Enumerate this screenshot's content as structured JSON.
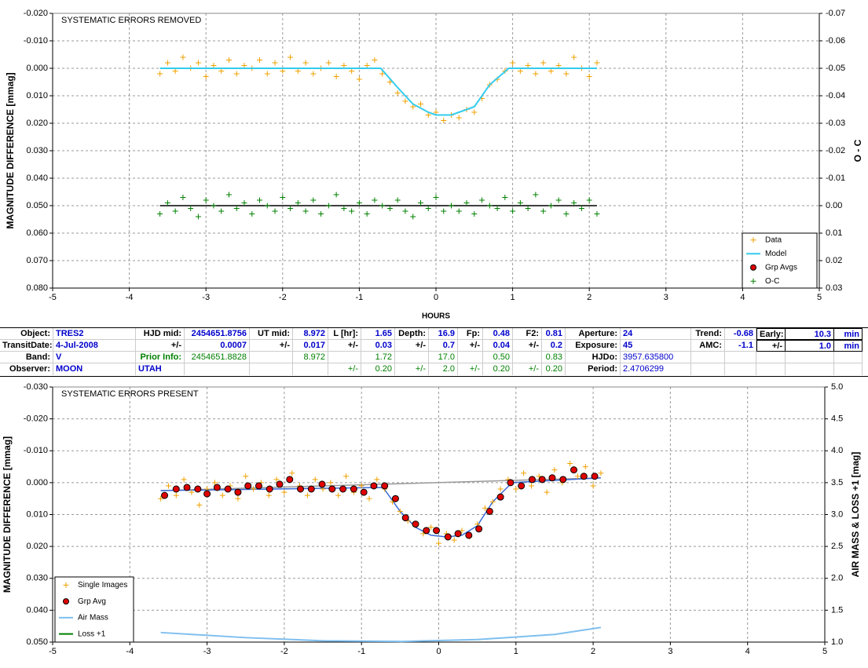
{
  "chart_data": [
    {
      "type": "scatter",
      "title": "SYSTEMATIC ERRORS REMOVED",
      "y_label": "MAGNITUDE DIFFERENCE [mmag]",
      "y2_label": "O - C",
      "x_label": "HOURS",
      "xlim": [
        -5,
        5
      ],
      "xticks": [
        -5,
        -4,
        -3,
        -2,
        -1,
        0,
        1,
        2,
        3,
        4,
        5
      ],
      "ylim": [
        0.08,
        -0.02
      ],
      "yticks": [
        {
          "value": -0.02,
          "label": "-0.020"
        },
        {
          "value": -0.01,
          "label": "-0.010"
        },
        {
          "value": 0,
          "label": "0.000"
        },
        {
          "value": 0.01,
          "label": "0.010"
        },
        {
          "value": 0.02,
          "label": "0.020"
        },
        {
          "value": 0.03,
          "label": "0.030"
        },
        {
          "value": 0.04,
          "label": "0.040"
        },
        {
          "value": 0.05,
          "label": "0.050"
        },
        {
          "value": 0.06,
          "label": "0.060"
        },
        {
          "value": 0.07,
          "label": "0.070"
        },
        {
          "value": 0.08,
          "label": "0.080"
        }
      ],
      "y2lim": [
        0.03,
        -0.07
      ],
      "y2ticks": [
        -0.07,
        -0.06,
        -0.05,
        -0.04,
        -0.03,
        -0.02,
        -0.01,
        {
          "value": 0,
          "label": "0.00"
        },
        0.01,
        0.02,
        0.03
      ],
      "grid": true,
      "legend": "lower-right",
      "x": [
        -3.6,
        -3.5,
        -3.4,
        -3.3,
        -3.2,
        -3.1,
        -3.0,
        -2.9,
        -2.8,
        -2.7,
        -2.6,
        -2.5,
        -2.4,
        -2.3,
        -2.2,
        -2.1,
        -2.0,
        -1.9,
        -1.8,
        -1.7,
        -1.6,
        -1.5,
        -1.4,
        -1.3,
        -1.2,
        -1.1,
        -1.0,
        -0.9,
        -0.8,
        -0.7,
        -0.6,
        -0.5,
        -0.4,
        -0.3,
        -0.2,
        -0.1,
        0.0,
        0.1,
        0.2,
        0.3,
        0.4,
        0.5,
        0.6,
        0.7,
        0.8,
        0.9,
        1.0,
        1.1,
        1.2,
        1.3,
        1.4,
        1.5,
        1.6,
        1.7,
        1.8,
        1.9,
        2.0,
        2.1
      ],
      "series": [
        {
          "name": "Data",
          "color": "#f0a000",
          "marker": "plus",
          "values": [
            0.002,
            -0.002,
            0.001,
            -0.004,
            0.0,
            -0.002,
            0.003,
            -0.001,
            0.001,
            -0.003,
            0.002,
            -0.001,
            0.0,
            -0.003,
            0.002,
            -0.002,
            0.001,
            -0.004,
            0.001,
            -0.002,
            0.002,
            0.0,
            -0.002,
            0.003,
            -0.001,
            0.001,
            0.004,
            -0.001,
            -0.003,
            0.002,
            0.005,
            0.009,
            0.012,
            0.014,
            0.013,
            0.017,
            0.016,
            0.019,
            0.017,
            0.018,
            0.015,
            0.016,
            0.011,
            0.006,
            0.004,
            0.001,
            -0.002,
            0.001,
            -0.001,
            0.002,
            -0.002,
            0.001,
            -0.001,
            0.002,
            -0.004,
            0.0,
            0.003,
            -0.002
          ]
        },
        {
          "name": "Model",
          "color": "#33ccee",
          "marker": "line",
          "x": [
            -3.6,
            -0.72,
            -0.5,
            -0.3,
            -0.1,
            0.0,
            0.2,
            0.5,
            0.7,
            0.95,
            2.1
          ],
          "values": [
            0,
            0,
            0.007,
            0.013,
            0.016,
            0.017,
            0.017,
            0.014,
            0.006,
            0,
            0
          ]
        },
        {
          "name": "Grp Avgs",
          "color": "#e00000",
          "marker": "circle",
          "x": [],
          "values": []
        },
        {
          "name": "O-C",
          "color": "#008000",
          "marker": "plus",
          "axis": "y2",
          "values": [
            0.003,
            -0.001,
            0.002,
            -0.003,
            0.001,
            0.004,
            -0.002,
            0.0,
            0.002,
            -0.004,
            0.001,
            -0.001,
            0.003,
            -0.002,
            0.0,
            0.002,
            -0.003,
            0.001,
            -0.001,
            0.002,
            -0.002,
            0.003,
            0.0,
            -0.004,
            0.001,
            0.002,
            -0.001,
            0.003,
            -0.002,
            0.0,
            0.001,
            -0.002,
            0.002,
            0.004,
            -0.001,
            0.001,
            -0.003,
            0.002,
            0.0,
            0.002,
            -0.001,
            0.003,
            -0.002,
            0.0,
            0.001,
            -0.003,
            0.002,
            -0.001,
            0.001,
            -0.004,
            0.002,
            0.0,
            -0.002,
            0.003,
            -0.001,
            0.001,
            -0.002,
            0.003
          ]
        }
      ],
      "extra_lines": [
        {
          "color": "#000000",
          "axis": "y2",
          "x": [
            -3.6,
            2.1
          ],
          "values": [
            0,
            0
          ]
        }
      ]
    },
    {
      "type": "scatter",
      "title": "SYSTEMATIC ERRORS PRESENT",
      "y_label": "MAGNITUDE DIFFERENCE [mmag]",
      "y2_label": "AIR MASS & LOSS +1 [mag]",
      "xlim": [
        -5,
        5
      ],
      "xticks": [
        -5,
        -4,
        -3,
        -2,
        -1,
        0,
        1,
        2,
        3,
        4,
        5
      ],
      "ylim": [
        0.05,
        -0.03
      ],
      "yticks": [
        {
          "value": -0.03,
          "label": "-0.030"
        },
        {
          "value": -0.02,
          "label": "-0.020"
        },
        {
          "value": -0.01,
          "label": "-0.010"
        },
        {
          "value": 0,
          "label": "0.000"
        },
        {
          "value": 0.01,
          "label": "0.010"
        },
        {
          "value": 0.02,
          "label": "0.020"
        },
        {
          "value": 0.03,
          "label": "0.030"
        },
        {
          "value": 0.04,
          "label": "0.040"
        },
        {
          "value": 0.05,
          "label": "0.050"
        }
      ],
      "y2lim": [
        1,
        5
      ],
      "y2ticks": [
        {
          "value": 1,
          "label": "1.0"
        },
        1.5,
        {
          "value": 2,
          "label": "2.0"
        },
        2.5,
        {
          "value": 3,
          "label": "3.0"
        },
        3.5,
        {
          "value": 4,
          "label": "4.0"
        },
        4.5,
        {
          "value": 5,
          "label": "5.0"
        }
      ],
      "grid": true,
      "legend": "lower-left",
      "x": [
        -3.6,
        -3.5,
        -3.4,
        -3.3,
        -3.2,
        -3.1,
        -3.0,
        -2.9,
        -2.8,
        -2.7,
        -2.6,
        -2.5,
        -2.4,
        -2.3,
        -2.2,
        -2.1,
        -2.0,
        -1.9,
        -1.8,
        -1.7,
        -1.6,
        -1.5,
        -1.4,
        -1.3,
        -1.2,
        -1.1,
        -1.0,
        -0.9,
        -0.8,
        -0.7,
        -0.6,
        -0.5,
        -0.4,
        -0.3,
        -0.2,
        -0.1,
        0.0,
        0.1,
        0.2,
        0.3,
        0.4,
        0.5,
        0.6,
        0.7,
        0.8,
        0.9,
        1.0,
        1.1,
        1.2,
        1.3,
        1.4,
        1.5,
        1.6,
        1.7,
        1.8,
        1.9,
        2.0,
        2.1
      ],
      "series": [
        {
          "name": "Single Images",
          "color": "#f0a000",
          "marker": "plus",
          "values": [
            0.005,
            0.001,
            0.004,
            -0.001,
            0.003,
            0.007,
            0.002,
            0.0,
            0.004,
            0.001,
            0.005,
            -0.002,
            0.002,
            0.0,
            0.004,
            -0.001,
            0.003,
            -0.003,
            0.001,
            0.004,
            -0.001,
            0.002,
            0.0,
            0.004,
            -0.002,
            0.003,
            0.001,
            0.005,
            -0.001,
            0.002,
            0.006,
            0.009,
            0.012,
            0.013,
            0.016,
            0.014,
            0.019,
            0.016,
            0.018,
            0.015,
            0.017,
            0.013,
            0.008,
            0.006,
            0.002,
            -0.001,
            0.002,
            -0.003,
            0.001,
            -0.002,
            0.003,
            -0.004,
            0.0,
            -0.006,
            -0.002,
            -0.005,
            0.001,
            -0.003
          ]
        },
        {
          "name": "Grp Avg",
          "color": "#e00000",
          "marker": "circle",
          "x": [
            -3.55,
            -3.4,
            -3.26,
            -3.12,
            -3.0,
            -2.87,
            -2.73,
            -2.6,
            -2.47,
            -2.33,
            -2.19,
            -2.06,
            -1.93,
            -1.79,
            -1.65,
            -1.51,
            -1.38,
            -1.24,
            -1.1,
            -0.97,
            -0.84,
            -0.7,
            -0.56,
            -0.43,
            -0.3,
            -0.16,
            -0.03,
            0.12,
            0.25,
            0.39,
            0.52,
            0.66,
            0.8,
            0.93,
            1.07,
            1.21,
            1.34,
            1.47,
            1.61,
            1.75,
            1.88,
            2.02
          ],
          "values": [
            0.004,
            0.002,
            0.0015,
            0.002,
            0.0035,
            0.0015,
            0.002,
            0.003,
            0.001,
            0.001,
            0.002,
            0.0005,
            -0.001,
            0.002,
            0.002,
            0.0005,
            0.002,
            0.002,
            0.002,
            0.003,
            0.001,
            0.001,
            0.005,
            0.011,
            0.013,
            0.015,
            0.015,
            0.017,
            0.016,
            0.0165,
            0.0145,
            0.009,
            0.0045,
            0.0,
            0.001,
            -0.001,
            -0.001,
            -0.0015,
            -0.001,
            -0.004,
            -0.002,
            -0.002
          ]
        },
        {
          "name": "Air Mass",
          "color": "#7fbfef",
          "marker": "line",
          "axis": "y2",
          "x": [
            -3.6,
            -2.5,
            -1.5,
            -0.5,
            0.5,
            1.5,
            2.1
          ],
          "values": [
            1.15,
            1.07,
            1.02,
            1.01,
            1.04,
            1.12,
            1.23
          ]
        },
        {
          "name": "Loss +1",
          "color": "#008000",
          "marker": "line",
          "axis": "y2",
          "x": [],
          "values": []
        }
      ],
      "extra_lines": [
        {
          "color": "#999999",
          "x": [
            -3.6,
            2.1
          ],
          "values": [
            0.0025,
            -0.0015
          ]
        },
        {
          "color": "#3b6bd6",
          "x": [
            -3.6,
            -0.72,
            -0.5,
            -0.3,
            -0.1,
            0.1,
            0.3,
            0.5,
            0.7,
            0.95,
            2.1
          ],
          "values": [
            0.0025,
            0.0015,
            0.009,
            0.014,
            0.0165,
            0.017,
            0.0165,
            0.0135,
            0.006,
            0.0,
            -0.0015
          ]
        }
      ]
    }
  ],
  "table": {
    "rows": [
      [
        "Object:",
        "TRES2",
        "HJD mid:",
        "2454651.8756",
        "UT mid:",
        "8.972",
        "L [hr]:",
        "1.65",
        "Depth:",
        "16.9",
        "Fp:",
        "0.48",
        "F2:",
        "0.81",
        "Aperture:",
        "24",
        "Trend:",
        "-0.68",
        "Early:",
        "10.3",
        "min"
      ],
      [
        "TransitDate:",
        "4-Jul-2008",
        "+/-",
        "0.0007",
        "+/-",
        "0.017",
        "+/-",
        "0.03",
        "+/-",
        "0.7",
        "+/-",
        "0.04",
        "+/-",
        "0.2",
        "Exposure:",
        "45",
        "AMC:",
        "-1.1",
        "+/-",
        "1.0",
        "min"
      ],
      [
        "Band:",
        "V",
        "Prior Info:",
        "2454651.8828",
        null,
        "8.972",
        null,
        "1.72",
        null,
        "17.0",
        null,
        "0.50",
        null,
        "0.83",
        "HJDo:",
        "3957.635800",
        null,
        null,
        null,
        null,
        null
      ],
      [
        "Observer:",
        "MOON",
        "UTAH",
        null,
        null,
        null,
        "+/-",
        "0.20",
        "+/-",
        "2.0",
        "+/-",
        "0.20",
        "+/-",
        "0.20",
        "Period:",
        "2.4706299",
        null,
        null,
        null,
        null,
        null
      ]
    ]
  }
}
